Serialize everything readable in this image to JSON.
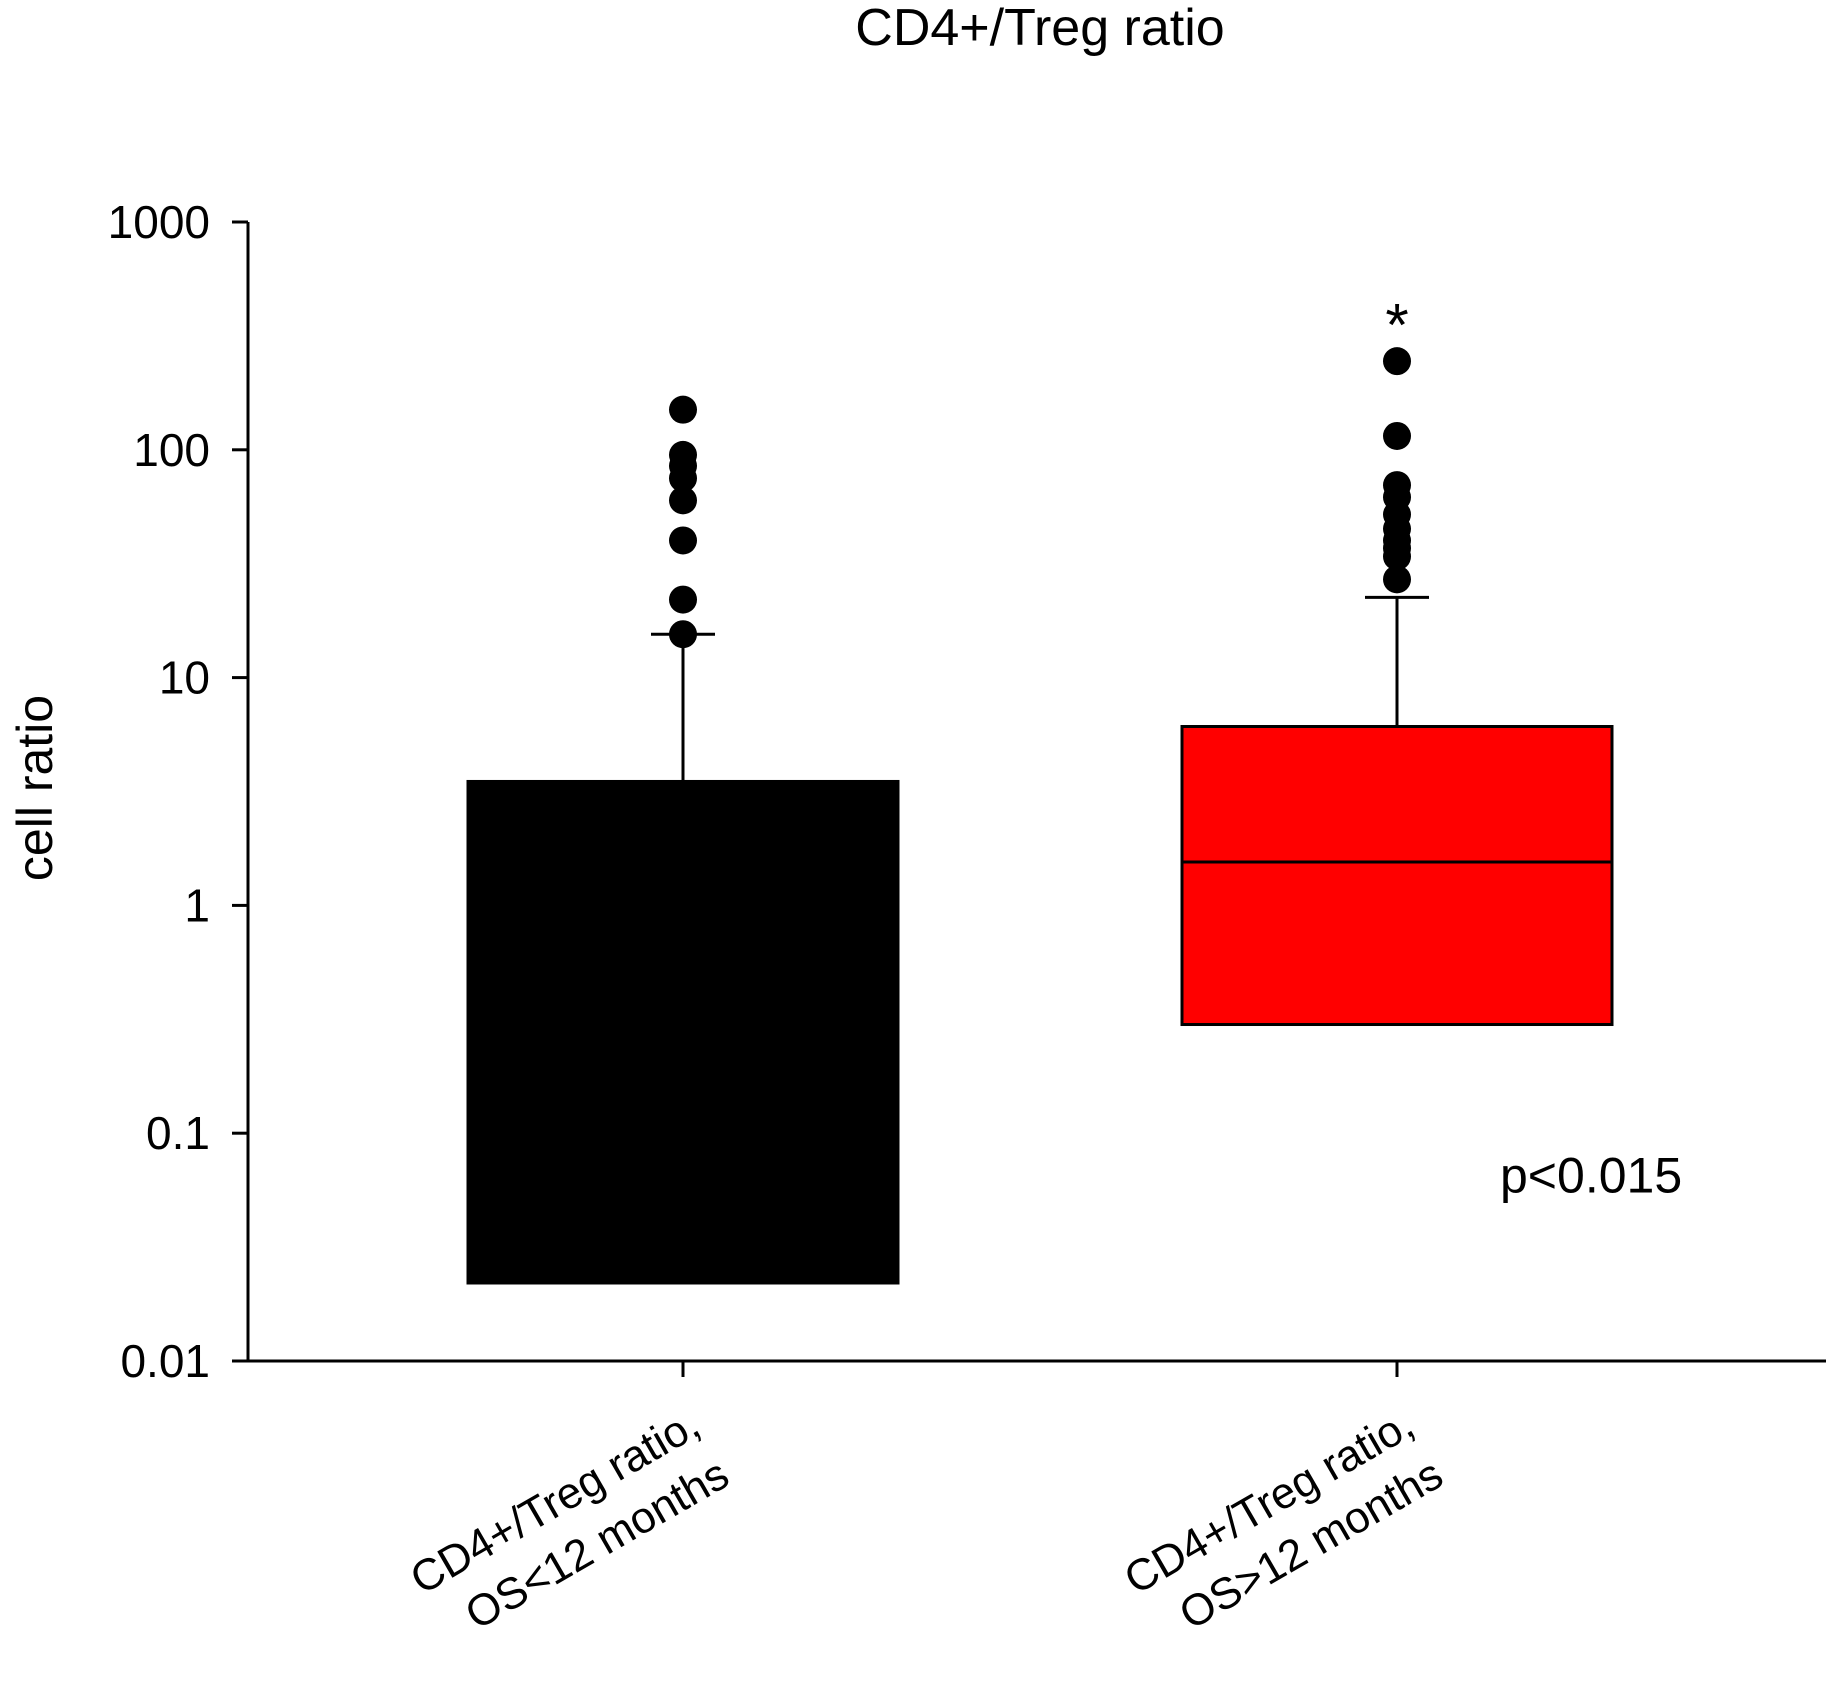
{
  "chart_data": {
    "type": "box",
    "title": "CD4+/Treg ratio",
    "ylabel": "cell ratio",
    "xlabel": "",
    "yscale": "log",
    "ylim": [
      0.01,
      1000
    ],
    "yticks": [
      {
        "value": 0.01,
        "label": "0.01"
      },
      {
        "value": 0.1,
        "label": "0.1"
      },
      {
        "value": 1,
        "label": "1"
      },
      {
        "value": 10,
        "label": "10"
      },
      {
        "value": 100,
        "label": "100"
      },
      {
        "value": 1000,
        "label": "1000"
      }
    ],
    "categories": [
      {
        "line1": "CD4+/Treg ratio,",
        "line2": "OS<12 months"
      },
      {
        "line1": "CD4+/Treg ratio,",
        "line2": "OS>12 months"
      }
    ],
    "boxes": [
      {
        "name": "OS<12 months",
        "color": "#000000",
        "q1": 0.022,
        "median": null,
        "q3": 3.5,
        "whisker_low": null,
        "whisker_high": 15.5,
        "outliers": [
          150,
          95,
          85,
          75,
          60,
          40,
          22,
          15.5
        ]
      },
      {
        "name": "OS>12 months",
        "color": "#ff0000",
        "q1": 0.3,
        "median": 1.55,
        "q3": 6.1,
        "whisker_low": null,
        "whisker_high": 22.5,
        "outliers": [
          245,
          115,
          70,
          62,
          52,
          45,
          40,
          37,
          34,
          27
        ]
      }
    ],
    "annotations": [
      {
        "text": "*",
        "category_index": 1,
        "value": 380
      },
      {
        "text": "p<0.015",
        "category_index": 1,
        "value": 0.055
      }
    ]
  }
}
